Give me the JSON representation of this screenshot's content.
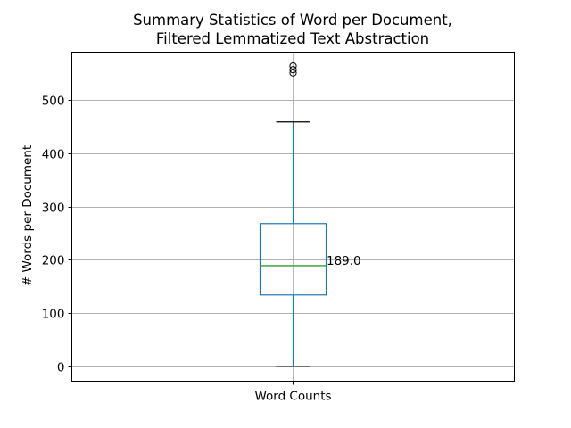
{
  "chart_data": {
    "type": "box",
    "title_lines": [
      "Summary Statistics of Word per Document,",
      "Filtered Lemmatized Text Abstraction"
    ],
    "xlabel": "",
    "ylabel": "# Words per Document",
    "categories": [
      "Word Counts"
    ],
    "ylim": [
      -28,
      590
    ],
    "yticks": [
      0,
      100,
      200,
      300,
      400,
      500
    ],
    "grid": true,
    "boxes": [
      {
        "category": "Word Counts",
        "whisker_low": 0,
        "q1": 134,
        "median": 189.0,
        "q3": 268,
        "whisker_high": 459,
        "outliers": [
          551,
          557,
          564
        ]
      }
    ],
    "annotations": [
      {
        "text": "189.0",
        "x": "Word Counts",
        "y": 189.0
      }
    ],
    "colors": {
      "box": "#1f77b4",
      "median": "#2ca02c",
      "grid": "#b0b0b0",
      "axis": "#000000"
    }
  }
}
